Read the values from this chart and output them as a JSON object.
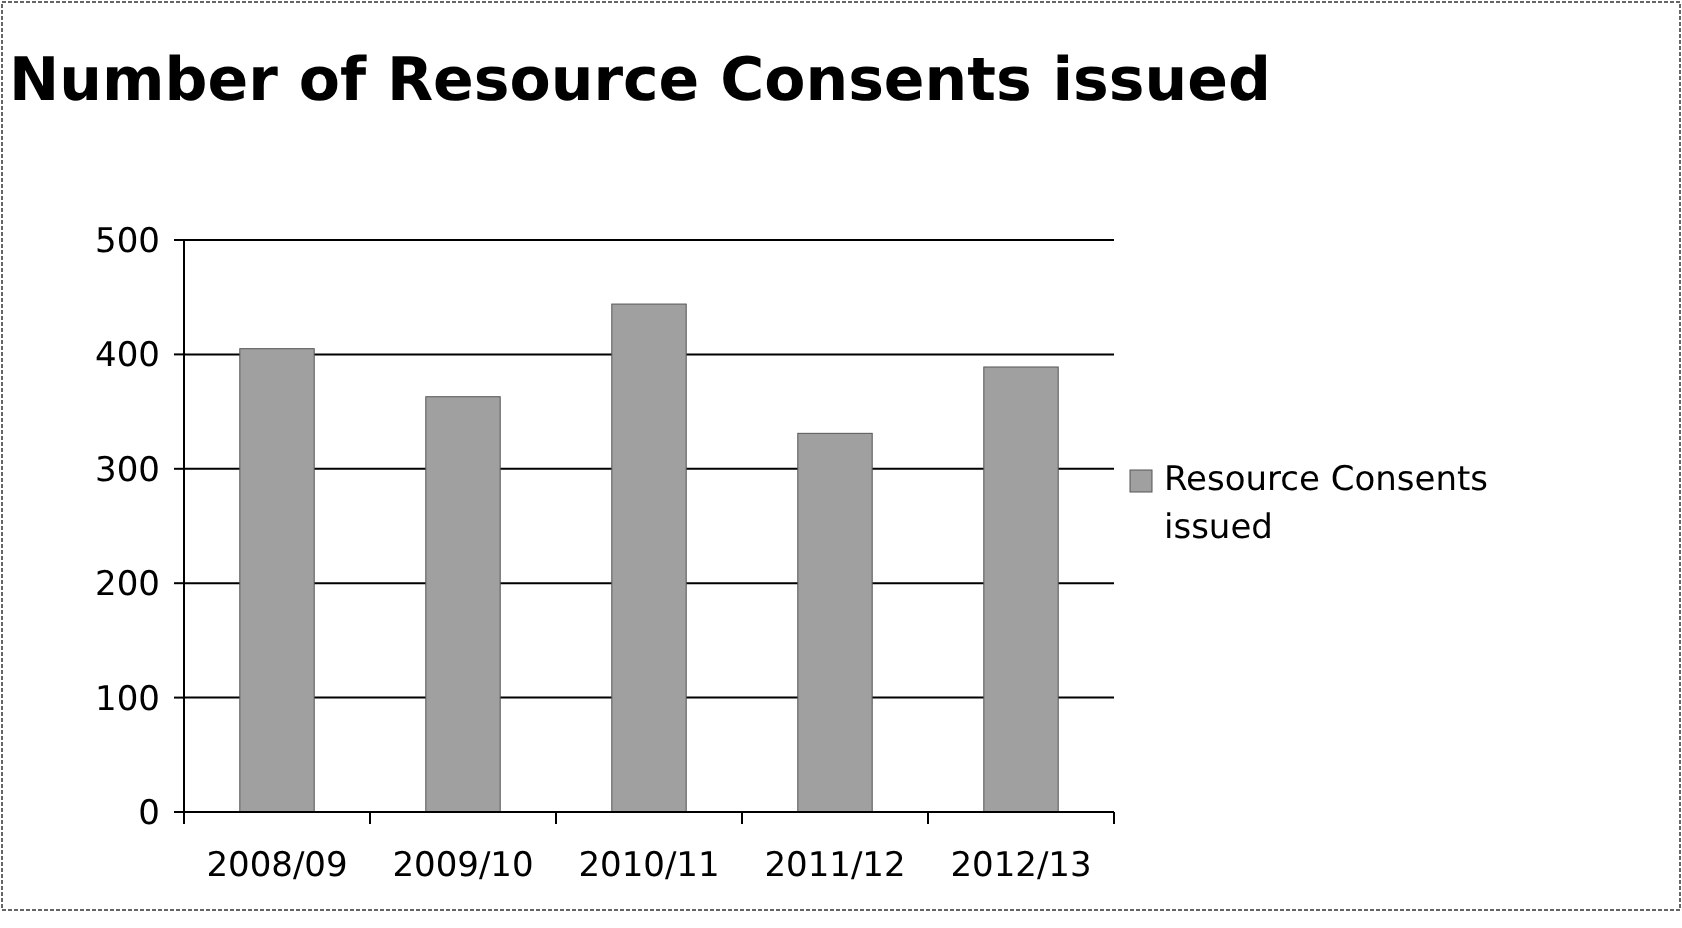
{
  "chart_data": {
    "type": "bar",
    "title": "Number of Resource Consents issued",
    "categories": [
      "2008/09",
      "2009/10",
      "2010/11",
      "2011/12",
      "2012/13"
    ],
    "series": [
      {
        "name": "Resource Consents issued",
        "color": "#a0a0a0",
        "values": [
          405,
          363,
          444,
          331,
          389
        ]
      }
    ],
    "ylim": [
      0,
      500
    ],
    "yticks": [
      0,
      100,
      200,
      300,
      400,
      500
    ],
    "grid": "y",
    "legend": "right"
  }
}
